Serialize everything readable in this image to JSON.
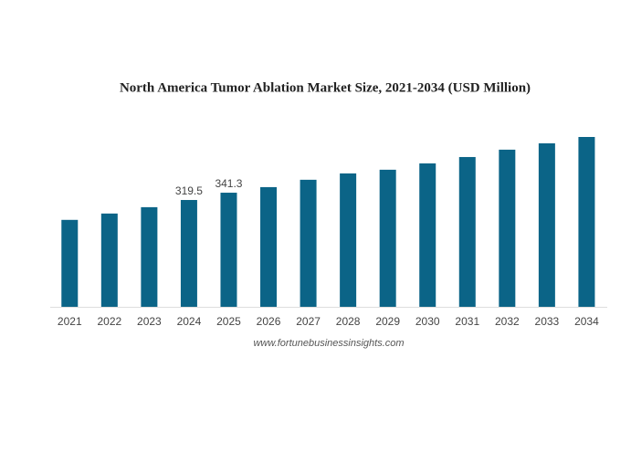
{
  "chart_data": {
    "type": "bar",
    "title": "North America Tumor Ablation Market Size, 2021-2034 (USD Million)",
    "categories": [
      "2021",
      "2022",
      "2023",
      "2024",
      "2025",
      "2026",
      "2027",
      "2028",
      "2029",
      "2030",
      "2031",
      "2032",
      "2033",
      "2034"
    ],
    "values": [
      260,
      279,
      298,
      319.5,
      341.3,
      358,
      380,
      399,
      410,
      429,
      448,
      470,
      489,
      508
    ],
    "value_labels": [
      null,
      null,
      null,
      "319.5",
      "341.3",
      null,
      null,
      null,
      null,
      null,
      null,
      null,
      null,
      null
    ],
    "color": "#0b6487",
    "source": "www.fortunebusinessinsights.com"
  }
}
